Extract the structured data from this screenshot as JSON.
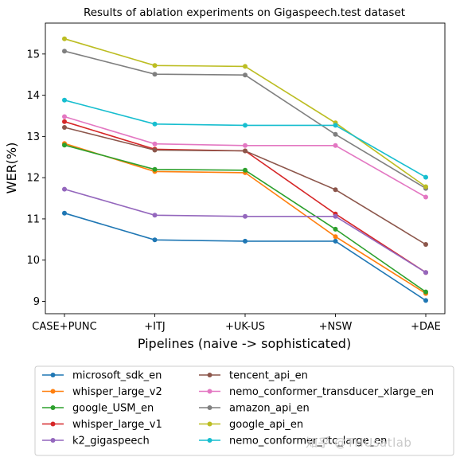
{
  "chart_data": {
    "type": "line",
    "title": "Results of ablation experiments on Gigaspeech.test dataset",
    "xlabel": "Pipelines (naive -> sophisticated)",
    "ylabel": "WER(%)",
    "categories": [
      "CASE+PUNC",
      "+ITJ",
      "+UK-US",
      "+NSW",
      "+DAE"
    ],
    "ylim": [
      8.7,
      15.75
    ],
    "yticks": [
      9,
      10,
      11,
      12,
      13,
      14,
      15
    ],
    "grid": false,
    "legend_placement": "below",
    "series": [
      {
        "name": "microsoft_sdk_en",
        "color": "#1f77b4",
        "values": [
          11.14,
          10.49,
          10.46,
          10.46,
          9.02
        ]
      },
      {
        "name": "whisper_large_v2",
        "color": "#ff7f0e",
        "values": [
          12.83,
          12.15,
          12.12,
          10.57,
          9.19
        ]
      },
      {
        "name": "google_USM_en",
        "color": "#2ca02c",
        "values": [
          12.79,
          12.2,
          12.18,
          10.75,
          9.23
        ]
      },
      {
        "name": "whisper_large_v1",
        "color": "#d62728",
        "values": [
          13.36,
          12.69,
          12.65,
          11.12,
          9.7
        ]
      },
      {
        "name": "k2_gigaspeech",
        "color": "#9467bd",
        "values": [
          11.72,
          11.09,
          11.06,
          11.06,
          9.7
        ]
      },
      {
        "name": "tencent_api_en",
        "color": "#8c564b",
        "values": [
          13.22,
          12.67,
          12.65,
          11.71,
          10.38
        ]
      },
      {
        "name": "nemo_conformer_transducer_xlarge_en",
        "color": "#e377c2",
        "values": [
          13.48,
          12.82,
          12.78,
          12.78,
          11.53
        ]
      },
      {
        "name": "amazon_api_en",
        "color": "#7f7f7f",
        "values": [
          15.07,
          14.51,
          14.49,
          13.05,
          11.74
        ]
      },
      {
        "name": "google_api_en",
        "color": "#bcbd22",
        "values": [
          15.37,
          14.72,
          14.7,
          13.33,
          11.78
        ]
      },
      {
        "name": "nemo_conformer_ctc_large_en",
        "color": "#17becf",
        "values": [
          13.88,
          13.3,
          13.27,
          13.27,
          12.01
        ]
      }
    ]
  },
  "watermark": "知乎 @THUsatlab"
}
